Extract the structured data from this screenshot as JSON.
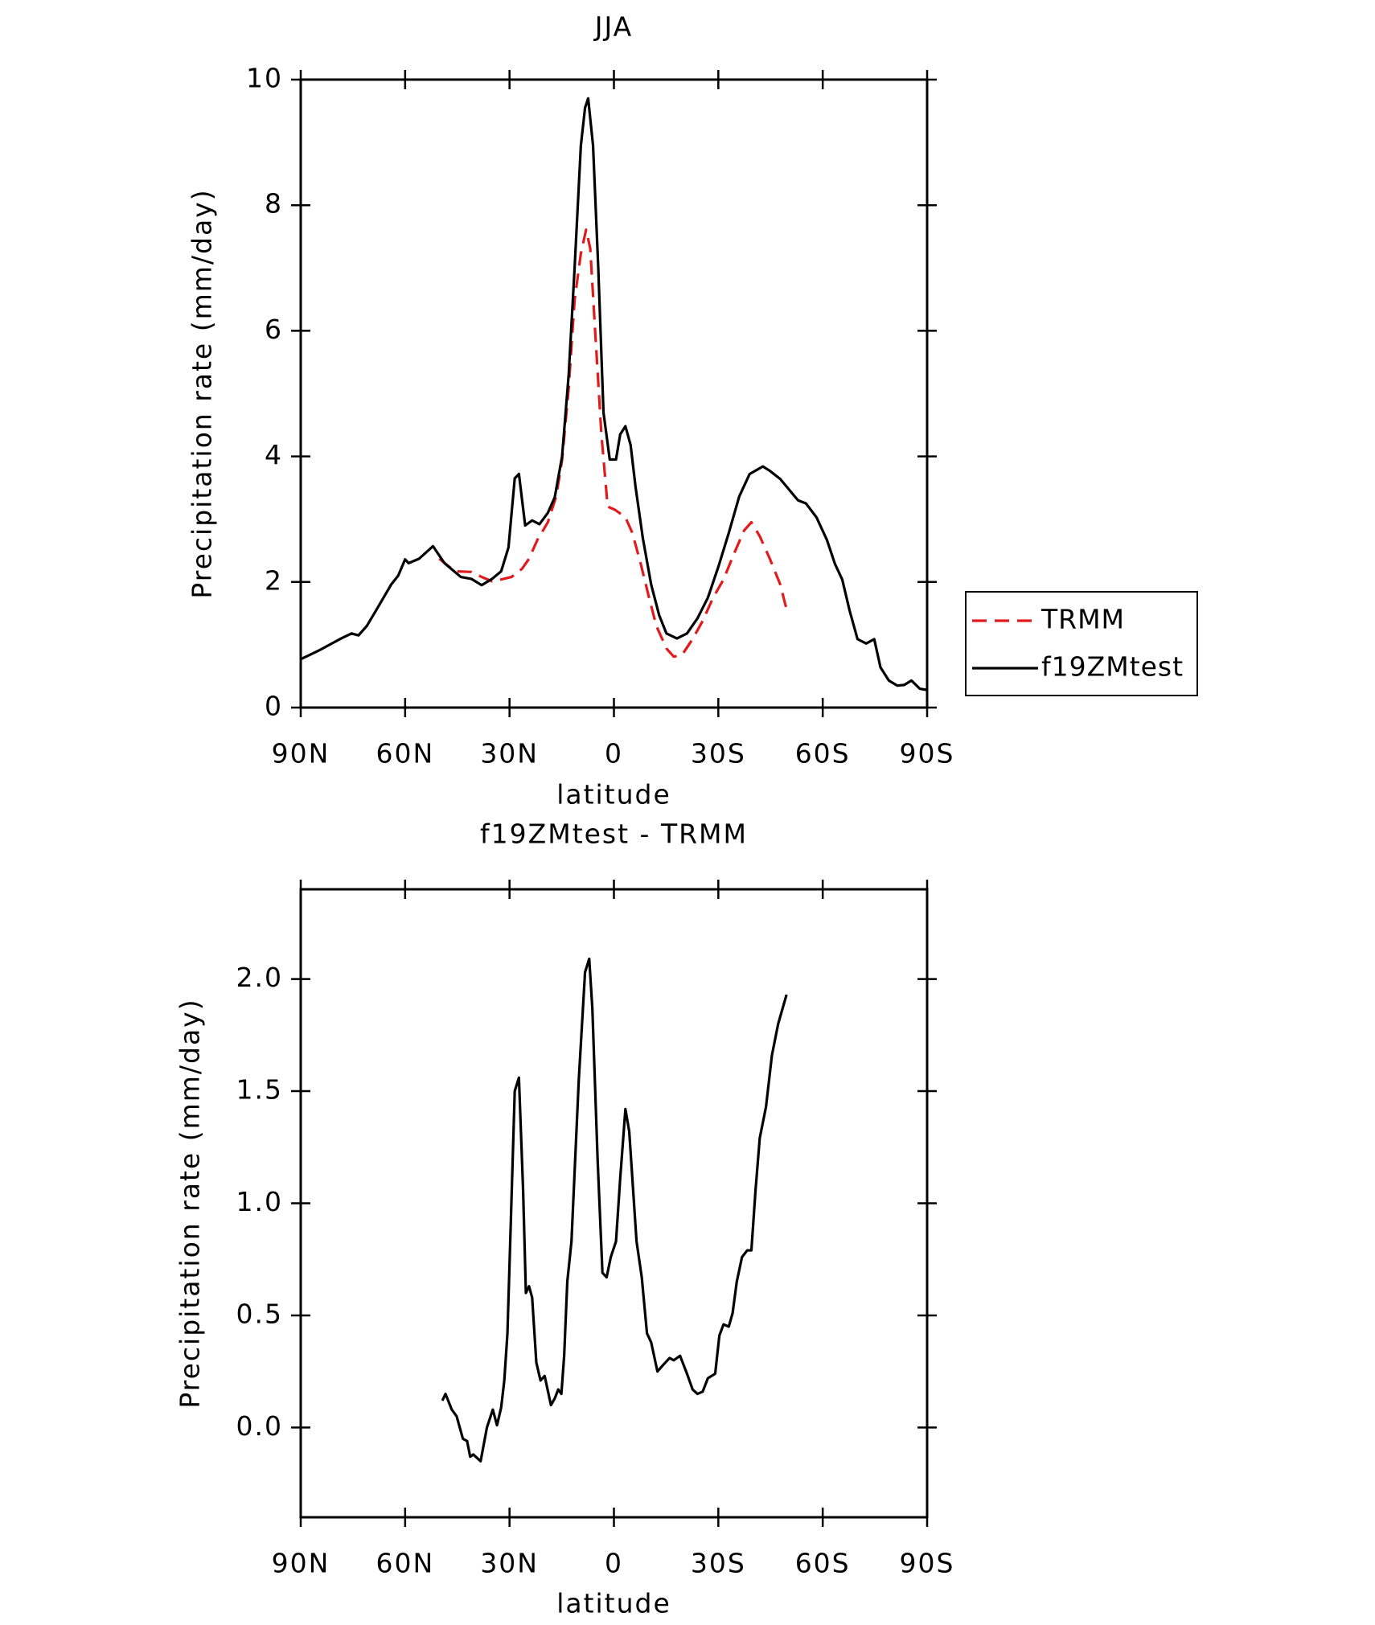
{
  "chart_data": [
    {
      "type": "line",
      "title": "JJA",
      "x_label": "latitude",
      "y_label": "Precipitation rate (mm/day)",
      "xlim": [
        90,
        -90
      ],
      "xticks": [
        {
          "value": 90,
          "label": "90N"
        },
        {
          "value": 60,
          "label": "60N"
        },
        {
          "value": 30,
          "label": "30N"
        },
        0,
        {
          "value": -30,
          "label": "30S"
        },
        {
          "value": -60,
          "label": "60S"
        },
        {
          "value": -90,
          "label": "90S"
        }
      ],
      "ylim": [
        0,
        10
      ],
      "yticks": [
        0,
        2,
        4,
        6,
        8,
        10
      ],
      "legend": "right",
      "series": [
        {
          "name": "TRMM",
          "color": "#e31a1c",
          "linestyle": "dashed",
          "x": [
            50.2,
            45.7,
            41,
            38,
            35,
            32.4,
            29.4,
            26.4,
            24.4,
            22,
            19,
            16.6,
            14.9,
            13,
            11.3,
            9.5,
            8,
            6.8,
            5.4,
            3.6,
            1.8,
            -0.3,
            -3.3,
            -5.3,
            -7.7,
            -10.1,
            -12.2,
            -15.1,
            -17.2,
            -19.6,
            -22.6,
            -25.5,
            -28.5,
            -31.5,
            -34.5,
            -37.4,
            -39.5,
            -41.9,
            -44.8,
            -47.8,
            -49.9
          ],
          "values": [
            2.37,
            2.17,
            2.16,
            2.08,
            2.01,
            2.04,
            2.08,
            2.21,
            2.37,
            2.67,
            2.95,
            3.36,
            3.94,
            5.09,
            6.49,
            7.23,
            7.61,
            7.31,
            6.0,
            4.35,
            3.2,
            3.15,
            3.03,
            2.78,
            2.29,
            1.75,
            1.3,
            0.94,
            0.81,
            0.84,
            1.09,
            1.38,
            1.75,
            2.04,
            2.45,
            2.82,
            2.95,
            2.73,
            2.37,
            1.96,
            1.5
          ]
        },
        {
          "name": "f19ZMtest",
          "color": "#000000",
          "linestyle": "solid",
          "x": [
            90,
            84.4,
            78.4,
            75.4,
            73.4,
            71,
            68,
            64,
            62,
            60,
            59,
            56,
            52,
            48.7,
            44,
            41,
            38,
            35,
            32.4,
            30.3,
            28.5,
            27.3,
            25.5,
            23.5,
            21.4,
            19,
            17,
            14.9,
            13,
            11.3,
            9.5,
            8.3,
            7.4,
            6,
            4.5,
            3,
            1.2,
            -0.6,
            -1.8,
            -3.3,
            -4.8,
            -6.2,
            -8.3,
            -10.7,
            -13,
            -15.1,
            -18.1,
            -21,
            -24,
            -27,
            -30,
            -33,
            -36,
            -39,
            -42.8,
            -44.8,
            -47.8,
            -50.8,
            -52.9,
            -55.2,
            -58.2,
            -61.2,
            -63.5,
            -65.6,
            -67.7,
            -70,
            -72.5,
            -74.8,
            -76.6,
            -79,
            -81.4,
            -83.4,
            -85.5,
            -87.9,
            -90
          ],
          "values": [
            0.77,
            0.92,
            1.1,
            1.18,
            1.15,
            1.3,
            1.58,
            1.96,
            2.1,
            2.36,
            2.3,
            2.37,
            2.57,
            2.3,
            2.08,
            2.05,
            1.95,
            2.05,
            2.17,
            2.55,
            3.65,
            3.72,
            2.9,
            2.98,
            2.92,
            3.1,
            3.35,
            4.0,
            5.3,
            7.0,
            8.95,
            9.55,
            9.7,
            8.95,
            7.0,
            4.7,
            3.95,
            3.95,
            4.35,
            4.48,
            4.18,
            3.52,
            2.7,
            1.96,
            1.47,
            1.18,
            1.1,
            1.18,
            1.42,
            1.75,
            2.24,
            2.78,
            3.36,
            3.72,
            3.84,
            3.77,
            3.64,
            3.44,
            3.3,
            3.25,
            3.03,
            2.67,
            2.29,
            2.04,
            1.55,
            1.09,
            1.02,
            1.09,
            0.64,
            0.43,
            0.35,
            0.36,
            0.43,
            0.3,
            0.28
          ]
        }
      ]
    },
    {
      "type": "line",
      "title": "f19ZMtest - TRMM",
      "x_label": "latitude",
      "y_label": "Precipitation rate (mm/day)",
      "xlim": [
        90,
        -90
      ],
      "xticks": [
        {
          "value": 90,
          "label": "90N"
        },
        {
          "value": 60,
          "label": "60N"
        },
        {
          "value": 30,
          "label": "30N"
        },
        0,
        {
          "value": -30,
          "label": "30S"
        },
        {
          "value": -60,
          "label": "60S"
        },
        {
          "value": -90,
          "label": "90S"
        }
      ],
      "ylim": [
        -0.4,
        2.4
      ],
      "yticks": [
        {
          "value": 0,
          "label": "0.0"
        },
        0.5,
        {
          "value": 1,
          "label": "1.0"
        },
        1.5,
        {
          "value": 2,
          "label": "2.0"
        }
      ],
      "series": [
        {
          "color": "#000000",
          "linestyle": "solid",
          "x": [
            49.3,
            48.4,
            46.6,
            45.2,
            43.4,
            42.2,
            41.3,
            40.4,
            38.3,
            36.5,
            34.8,
            33.6,
            32.4,
            31.5,
            30.6,
            29.7,
            28.5,
            27.3,
            26.1,
            25.3,
            24.4,
            23.5,
            22.3,
            21.1,
            19.9,
            18.1,
            17,
            16,
            15.1,
            14.3,
            13.4,
            12.2,
            10.1,
            8.3,
            7.1,
            6.2,
            4.7,
            3.3,
            2.1,
            0.9,
            -0.6,
            -1.8,
            -3.3,
            -4.4,
            -6.5,
            -8,
            -9.5,
            -10.7,
            -12.5,
            -14.2,
            -16,
            -17.2,
            -19,
            -21,
            -22.6,
            -24,
            -25.5,
            -27,
            -29.1,
            -30.3,
            -31.5,
            -33,
            -34.1,
            -35.3,
            -36.8,
            -38.3,
            -39.5,
            -40.7,
            -41.9,
            -43.7,
            -45.4,
            -47.2,
            -49.6
          ],
          "values": [
            0.12,
            0.15,
            0.08,
            0.05,
            -0.05,
            -0.06,
            -0.13,
            -0.12,
            -0.15,
            0,
            0.08,
            0.01,
            0.09,
            0.21,
            0.42,
            0.88,
            1.5,
            1.56,
            1.06,
            0.6,
            0.63,
            0.58,
            0.29,
            0.21,
            0.23,
            0.1,
            0.13,
            0.17,
            0.15,
            0.32,
            0.65,
            0.83,
            1.55,
            2.03,
            2.09,
            1.87,
            1.2,
            0.69,
            0.67,
            0.76,
            0.83,
            1.11,
            1.42,
            1.32,
            0.83,
            0.67,
            0.42,
            0.38,
            0.25,
            0.28,
            0.31,
            0.3,
            0.32,
            0.24,
            0.17,
            0.15,
            0.16,
            0.22,
            0.24,
            0.41,
            0.46,
            0.45,
            0.51,
            0.65,
            0.76,
            0.79,
            0.79,
            1.06,
            1.29,
            1.43,
            1.66,
            1.8,
            1.93
          ]
        }
      ]
    }
  ]
}
